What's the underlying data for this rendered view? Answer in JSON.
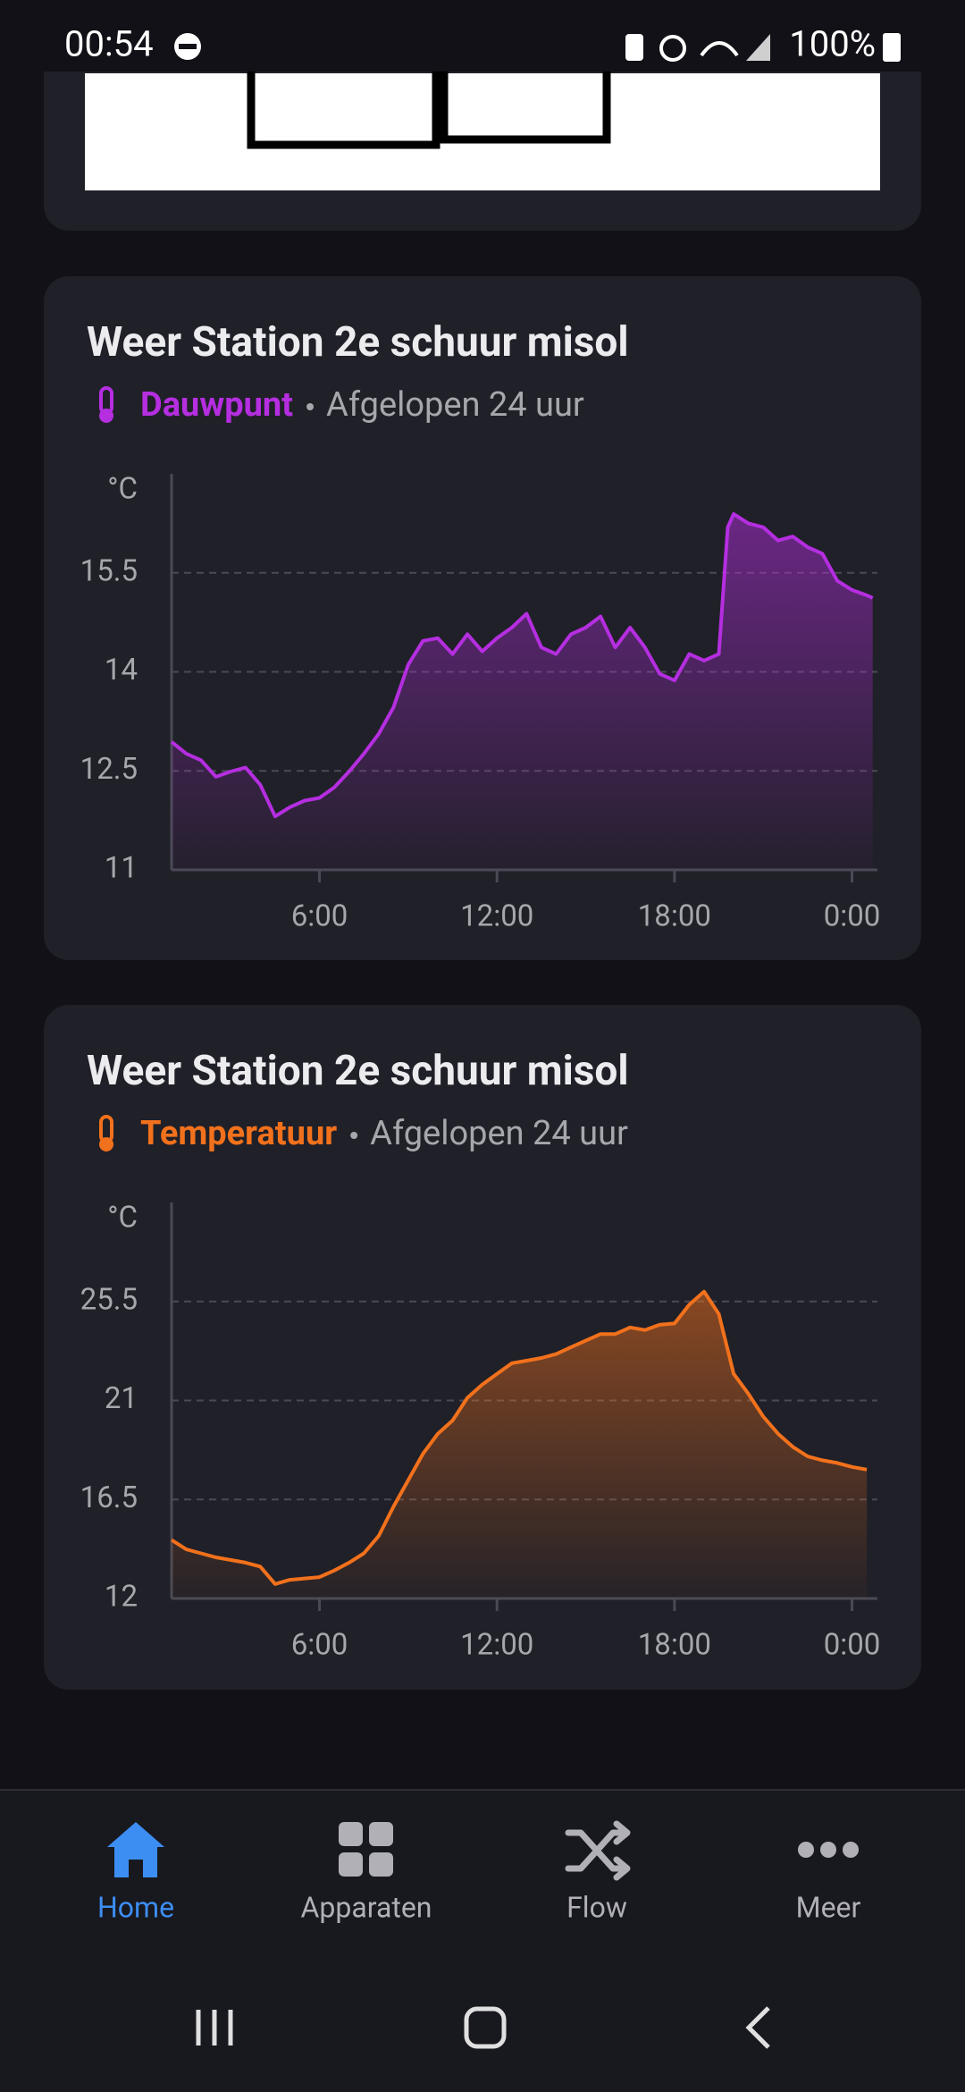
{
  "status_bar": {
    "time": "00:54",
    "battery": "100%"
  },
  "chart_data": [
    {
      "type": "line",
      "title": "Weer Station 2e schuur misol",
      "subtitle": "Afgelopen 24 uur",
      "y_unit": "°C",
      "x": [
        1,
        1.5,
        2,
        2.5,
        3,
        3.5,
        4,
        4.5,
        5,
        5.5,
        6,
        6.5,
        7,
        7.5,
        8,
        8.5,
        9,
        9.5,
        10,
        10.5,
        11,
        11.5,
        12,
        12.5,
        13,
        13.5,
        14,
        14.5,
        15,
        15.5,
        16,
        16.5,
        17,
        17.5,
        18,
        18.5,
        19,
        19.5,
        19.8,
        20,
        20.5,
        21,
        21.5,
        22,
        22.5,
        23,
        23.5,
        24,
        24.5,
        24.7
      ],
      "series": [
        {
          "name": "Dauwpunt",
          "color": "#b52ee0",
          "values": [
            12.94,
            12.76,
            12.66,
            12.41,
            12.49,
            12.55,
            12.29,
            11.81,
            11.95,
            12.05,
            12.09,
            12.25,
            12.49,
            12.76,
            13.06,
            13.46,
            14.11,
            14.47,
            14.51,
            14.27,
            14.57,
            14.31,
            14.51,
            14.67,
            14.88,
            14.37,
            14.27,
            14.57,
            14.67,
            14.84,
            14.37,
            14.67,
            14.37,
            13.97,
            13.87,
            14.27,
            14.17,
            14.27,
            16.19,
            16.39,
            16.25,
            16.19,
            15.99,
            16.05,
            15.89,
            15.79,
            15.38,
            15.24,
            15.16,
            15.12
          ]
        }
      ],
      "xlim": [
        1,
        24.86
      ],
      "xticks": [
        {
          "value": 6,
          "label": "6:00"
        },
        {
          "value": 12,
          "label": "12:00"
        },
        {
          "value": 18,
          "label": "18:00"
        },
        {
          "value": 24,
          "label": "0:00"
        }
      ],
      "ylim": [
        11,
        17
      ],
      "yticks": [
        11,
        12.5,
        14,
        15.5
      ],
      "grid": true
    },
    {
      "type": "line",
      "title": "Weer Station 2e schuur misol",
      "subtitle": "Afgelopen 24 uur",
      "y_unit": "°C",
      "x": [
        1,
        1.5,
        2,
        2.5,
        3,
        3.5,
        4,
        4.5,
        5,
        5.5,
        6,
        6.5,
        7,
        7.5,
        8,
        8.5,
        9,
        9.5,
        10,
        10.5,
        11,
        11.5,
        12,
        12.5,
        13,
        13.5,
        14,
        14.5,
        15,
        15.5,
        16,
        16.5,
        17,
        17.5,
        18,
        18.5,
        19,
        19.5,
        20,
        20.5,
        21,
        21.5,
        22,
        22.5,
        23,
        23.5,
        24,
        24.5
      ],
      "series": [
        {
          "name": "Temperatuur",
          "color": "#f2711c",
          "values": [
            14.66,
            14.23,
            14.05,
            13.87,
            13.75,
            13.63,
            13.45,
            12.66,
            12.85,
            12.91,
            12.97,
            13.27,
            13.63,
            14.05,
            14.84,
            16.17,
            17.38,
            18.58,
            19.49,
            20.09,
            21.12,
            21.72,
            22.21,
            22.69,
            22.81,
            22.93,
            23.11,
            23.42,
            23.72,
            24.02,
            24.02,
            24.32,
            24.2,
            24.44,
            24.5,
            25.35,
            25.95,
            24.93,
            22.21,
            21.3,
            20.27,
            19.49,
            18.89,
            18.46,
            18.28,
            18.16,
            17.98,
            17.86
          ]
        }
      ],
      "xlim": [
        1,
        24.86
      ],
      "xticks": [
        {
          "value": 6,
          "label": "6:00"
        },
        {
          "value": 12,
          "label": "12:00"
        },
        {
          "value": 18,
          "label": "18:00"
        },
        {
          "value": 24,
          "label": "0:00"
        }
      ],
      "ylim": [
        12,
        30
      ],
      "yticks": [
        12,
        16.5,
        21,
        25.5
      ],
      "grid": true
    }
  ],
  "nav": {
    "items": [
      "Home",
      "Apparaten",
      "Flow",
      "Meer"
    ]
  }
}
